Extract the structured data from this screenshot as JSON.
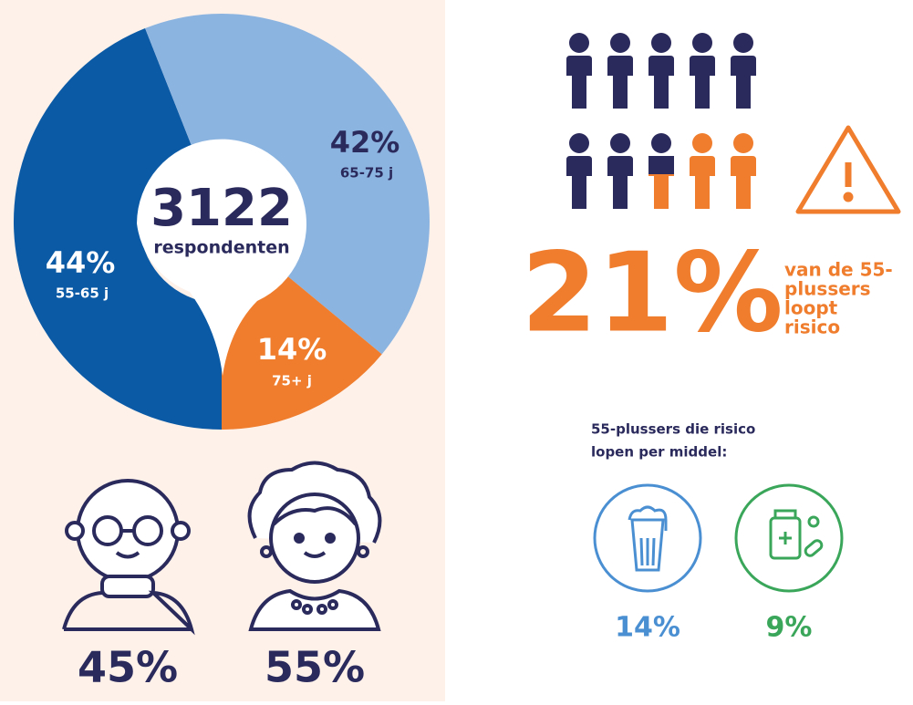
{
  "chart_data": {
    "type": "pie",
    "categories": [
      "55-65 j",
      "65-75 j",
      "75+ j"
    ],
    "values": [
      44,
      42,
      14
    ],
    "value_labels": [
      "44%",
      "42%",
      "14%"
    ],
    "colors": [
      "#0b5aa6",
      "#8cb4e0",
      "#ef7d2d"
    ],
    "center_value": "3122",
    "center_label": "respondenten"
  },
  "gender": {
    "male": "45%",
    "female": "55%"
  },
  "risk": {
    "value": "21%",
    "text": [
      "van de 55-",
      "plussers",
      "loopt",
      "risico"
    ]
  },
  "substances": {
    "title": [
      "55-plussers die risico",
      "lopen per middel:"
    ],
    "alcohol": "14%",
    "medication": "9%"
  }
}
